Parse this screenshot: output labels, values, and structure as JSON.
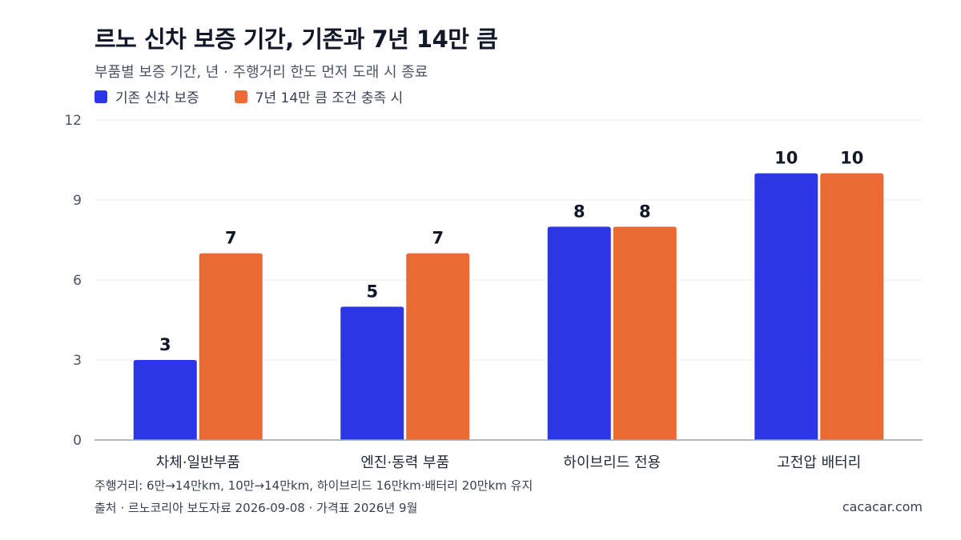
{
  "title": "르노 신차 보증 기간, 기존과 7년 14만 큼",
  "subtitle": "부품별 보증 기간, 년 · 주행거리 한도 먼저 도래 시 종료",
  "note": "주행거리: 6만→14만km, 10만→14만km, 하이브리드 16만km·배터리 20만km 유지",
  "source": "출처 · 르노코리아 보도자료 2026-09-08 · 가격표 2026년 9월",
  "site": "cacacar.com",
  "colors": {
    "series1": "#2b37e6",
    "series2": "#e96a35",
    "grid": "#eeeeee",
    "axis": "#9ca3af"
  },
  "chart_data": {
    "type": "bar",
    "categories": [
      "차체·일반부품",
      "엔진·동력 부품",
      "하이브리드 전용",
      "고전압 배터리"
    ],
    "series": [
      {
        "name": "기존 신차 보증",
        "values": [
          3,
          5,
          8,
          10
        ]
      },
      {
        "name": "7년 14만 큼 조건 충족 시",
        "values": [
          7,
          7,
          8,
          10
        ]
      }
    ],
    "ylim": [
      0,
      12
    ],
    "yticks": [
      0,
      3,
      6,
      9,
      12
    ],
    "grid": true,
    "legend": "top-left"
  }
}
